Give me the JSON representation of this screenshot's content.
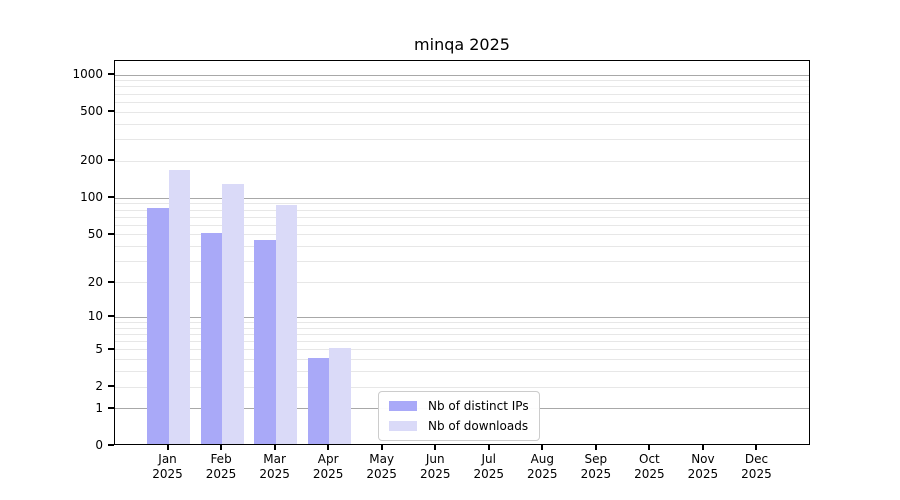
{
  "chart_data": {
    "type": "bar",
    "title": "minqa 2025",
    "categories": [
      "Jan",
      "Feb",
      "Mar",
      "Apr",
      "May",
      "Jun",
      "Jul",
      "Aug",
      "Sep",
      "Oct",
      "Nov",
      "Dec"
    ],
    "category_year": "2025",
    "series": [
      {
        "name": "Nb of distinct IPs",
        "color": "#a9a9f8",
        "values": [
          80,
          50,
          44,
          4,
          0,
          0,
          0,
          0,
          0,
          0,
          0,
          0
        ]
      },
      {
        "name": "Nb of downloads",
        "color": "#dadaf8",
        "values": [
          165,
          125,
          85,
          5,
          0,
          0,
          0,
          0,
          0,
          0,
          0,
          0
        ]
      }
    ],
    "yticks": [
      0,
      1,
      2,
      5,
      10,
      20,
      50,
      100,
      200,
      500,
      1000
    ],
    "yscale": "log10(1+v)",
    "ylim": [
      0,
      1300
    ],
    "grid": {
      "major_at": [
        1,
        10,
        100,
        1000
      ],
      "major_color": "#a8a8a8",
      "minor_color": "#e7e7e7"
    },
    "legend_position": "inside-bottom-center"
  }
}
